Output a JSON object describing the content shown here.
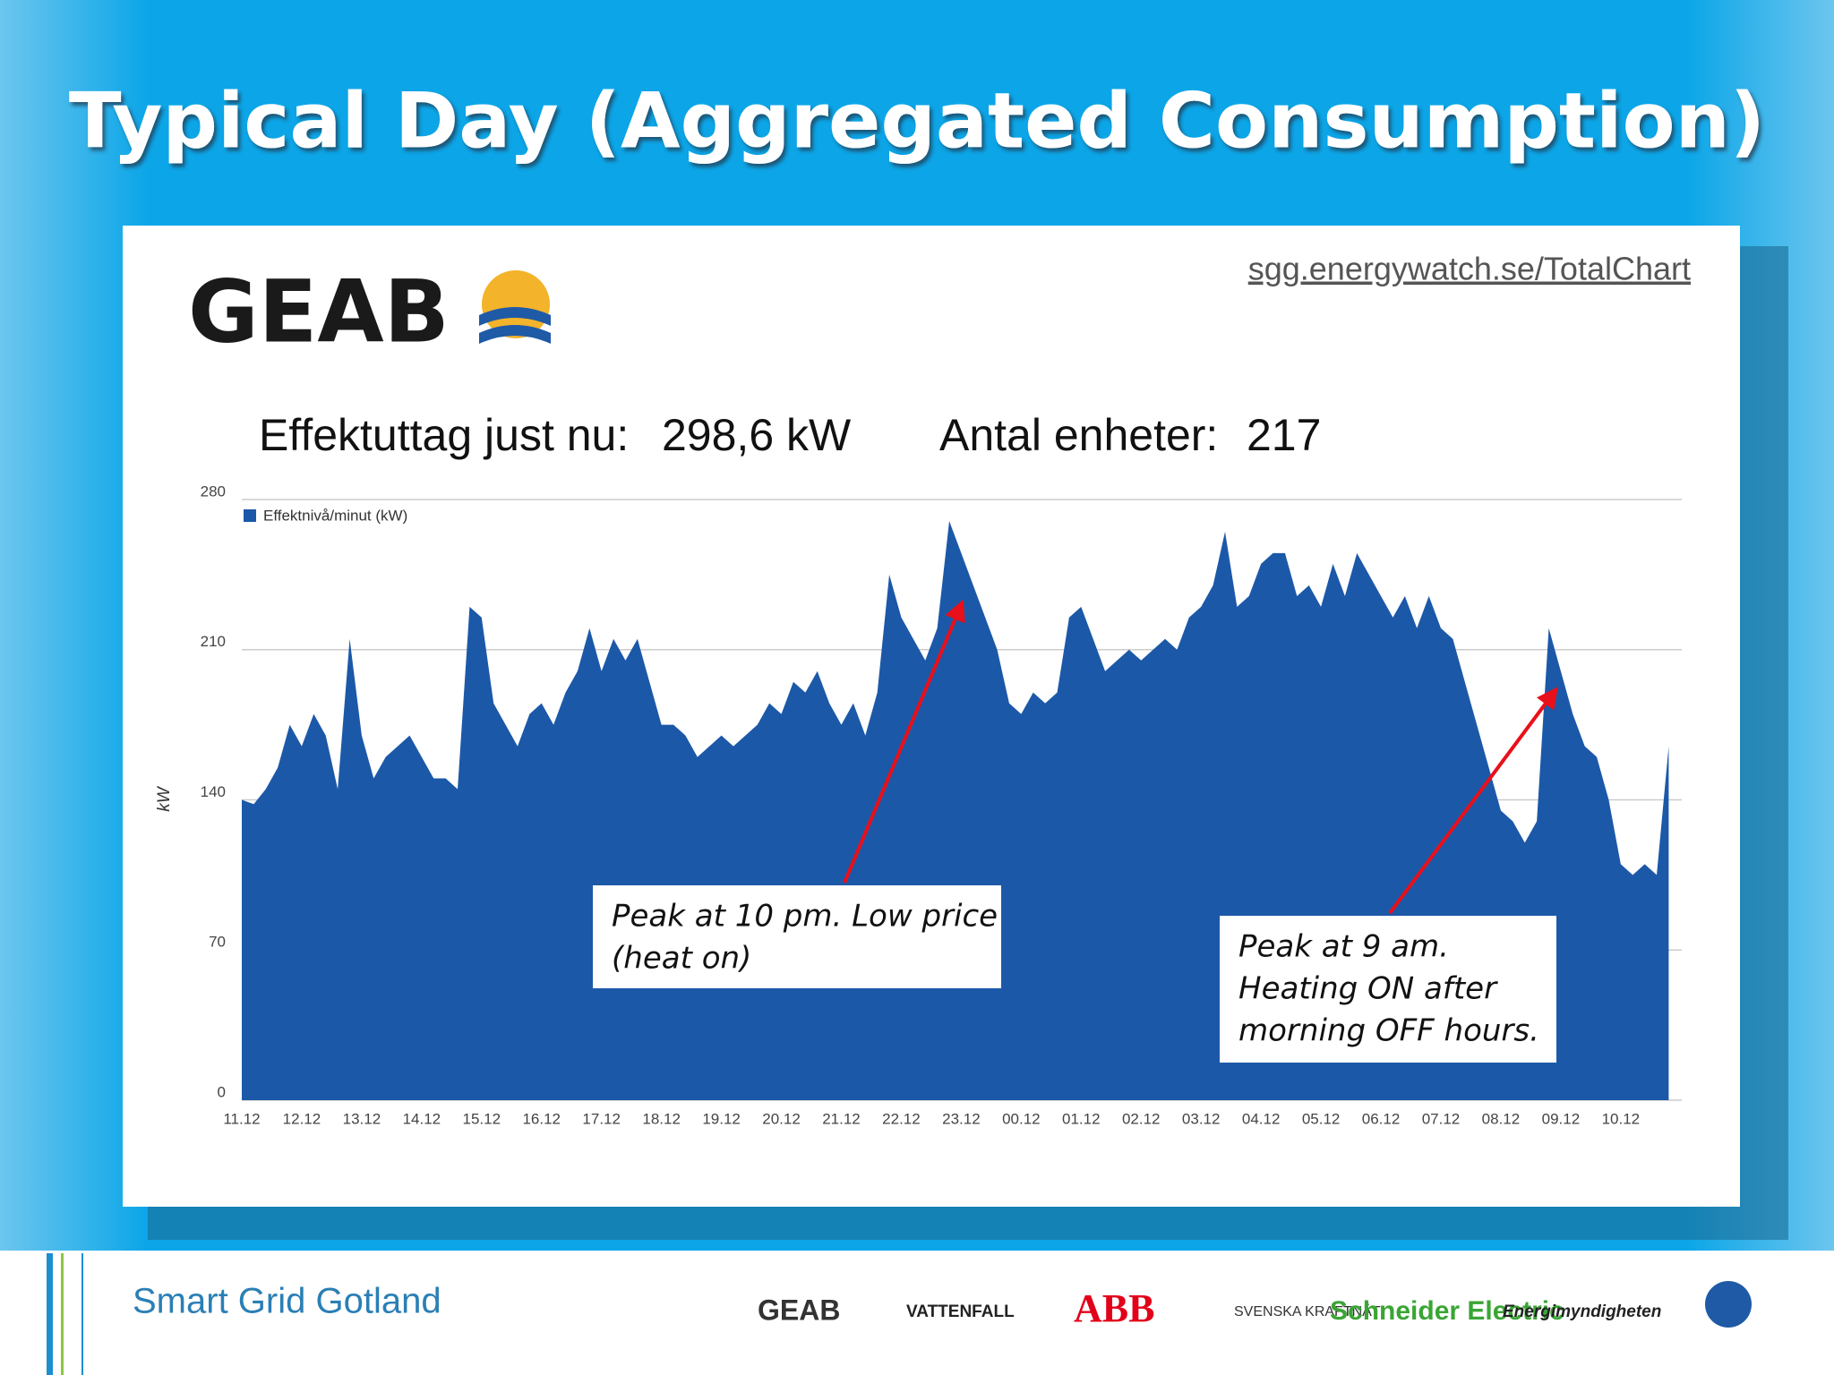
{
  "title": "Typical Day (Aggregated Consumption)",
  "url": "sgg.energywatch.se/TotalChart",
  "logo": "GEAB",
  "status": [
    {
      "label": "Effektuttag just nu:",
      "value": "298,6 kW"
    },
    {
      "label": "Antal enheter:",
      "value": "217"
    }
  ],
  "chart_data": {
    "type": "area",
    "y_label": "kW",
    "legend_position": "top-left",
    "grid": true,
    "ylim": [
      0,
      280
    ],
    "yticks": [
      0,
      70,
      140,
      210,
      280
    ],
    "categories": [
      "11.12",
      null,
      null,
      null,
      null,
      "12.12",
      null,
      null,
      null,
      null,
      "13.12",
      null,
      null,
      null,
      null,
      "14.12",
      null,
      null,
      null,
      null,
      "15.12",
      null,
      null,
      null,
      null,
      "16.12",
      null,
      null,
      null,
      null,
      "17.12",
      null,
      null,
      null,
      null,
      "18.12",
      null,
      null,
      null,
      null,
      "19.12",
      null,
      null,
      null,
      null,
      "20.12",
      null,
      null,
      null,
      null,
      "21.12",
      null,
      null,
      null,
      null,
      "22.12",
      null,
      null,
      null,
      null,
      "23.12",
      null,
      null,
      null,
      null,
      "00.12",
      null,
      null,
      null,
      null,
      "01.12",
      null,
      null,
      null,
      null,
      "02.12",
      null,
      null,
      null,
      null,
      "03.12",
      null,
      null,
      null,
      null,
      "04.12",
      null,
      null,
      null,
      null,
      "05.12",
      null,
      null,
      null,
      null,
      "06.12",
      null,
      null,
      null,
      null,
      "07.12",
      null,
      null,
      null,
      null,
      "08.12",
      null,
      null,
      null,
      null,
      "09.12",
      null,
      null,
      null,
      null,
      "10.12",
      null,
      null,
      null,
      null
    ],
    "series": [
      {
        "name": "Effektnivå/minut (kW)",
        "color": "#1c58a8",
        "values": [
          140,
          138,
          145,
          155,
          175,
          165,
          180,
          170,
          145,
          215,
          170,
          150,
          160,
          165,
          170,
          160,
          150,
          150,
          145,
          230,
          225,
          185,
          175,
          165,
          180,
          185,
          175,
          190,
          200,
          220,
          200,
          215,
          205,
          215,
          195,
          175,
          175,
          170,
          160,
          165,
          170,
          165,
          170,
          175,
          185,
          180,
          195,
          190,
          200,
          185,
          175,
          185,
          170,
          190,
          245,
          225,
          215,
          205,
          220,
          270,
          255,
          240,
          225,
          210,
          185,
          180,
          190,
          185,
          190,
          225,
          230,
          215,
          200,
          205,
          210,
          205,
          210,
          215,
          210,
          225,
          230,
          240,
          265,
          230,
          235,
          250,
          255,
          255,
          235,
          240,
          230,
          250,
          235,
          255,
          245,
          235,
          225,
          235,
          220,
          235,
          220,
          215,
          195,
          175,
          155,
          135,
          130,
          120,
          130,
          220,
          200,
          180,
          165,
          160,
          140,
          110,
          105,
          110,
          105,
          165
        ]
      }
    ],
    "annotations": [
      {
        "lines": [
          "Peak at 10 pm. Low price",
          "(heat on)"
        ]
      },
      {
        "lines": [
          "Peak at 9 am.",
          "Heating ON after",
          "morning OFF hours."
        ]
      }
    ]
  },
  "footer": "Smart Grid Gotland",
  "partners": [
    "GEAB",
    "VATTENFALL",
    "ABB",
    "SVENSKA KRAFTNÄT",
    "Schneider Electric",
    "Energimyndigheten"
  ]
}
